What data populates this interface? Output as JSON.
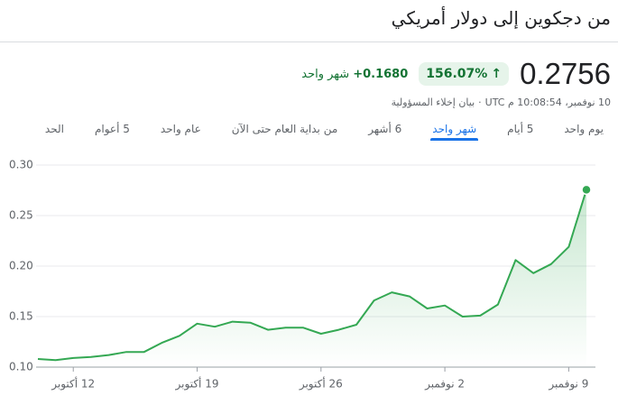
{
  "header": {
    "title": "من دجكوين إلى دولار أمريكي",
    "price": "0.2756",
    "change_percent": "156.07%",
    "arrow": "↑",
    "change": "+0.1680",
    "period": "شهر واحد",
    "timestamp": "10 نوفمبر، 10:08:54 م UTC",
    "separator": "·",
    "disclaimer": "بيان إخلاء المسؤولية"
  },
  "tabs": [
    {
      "label": "يوم واحد",
      "selected": false
    },
    {
      "label": "5 أيام",
      "selected": false
    },
    {
      "label": "شهر واحد",
      "selected": true
    },
    {
      "label": "6 أشهر",
      "selected": false
    },
    {
      "label": "من بداية العام حتى الآن",
      "selected": false
    },
    {
      "label": "عام واحد",
      "selected": false
    },
    {
      "label": "5 أعوام",
      "selected": false
    },
    {
      "label": "الحد",
      "selected": false
    }
  ],
  "chart_data": {
    "type": "area",
    "color": "#34a853",
    "categories": [
      null,
      null,
      "12 أكتوبر",
      null,
      null,
      null,
      null,
      null,
      null,
      "19 أكتوبر",
      null,
      null,
      null,
      null,
      null,
      null,
      "26 أكتوبر",
      null,
      null,
      null,
      null,
      null,
      null,
      "2 نوفمبر",
      null,
      null,
      null,
      null,
      null,
      null,
      "9 نوفمبر",
      null
    ],
    "values": [
      0.108,
      0.107,
      0.109,
      0.11,
      0.112,
      0.115,
      0.115,
      0.124,
      0.131,
      0.143,
      0.14,
      0.145,
      0.144,
      0.137,
      0.139,
      0.139,
      0.133,
      0.137,
      0.142,
      0.166,
      0.174,
      0.17,
      0.158,
      0.161,
      0.15,
      0.151,
      0.162,
      0.206,
      0.193,
      0.202,
      0.219,
      0.2756
    ],
    "ylim": [
      0.1,
      0.3
    ],
    "yticks": [
      {
        "value": 0.1,
        "label": "0.10"
      },
      0.15,
      {
        "value": 0.2,
        "label": "0.20"
      },
      0.25,
      {
        "value": 0.3,
        "label": "0.30"
      }
    ],
    "grid": true
  }
}
